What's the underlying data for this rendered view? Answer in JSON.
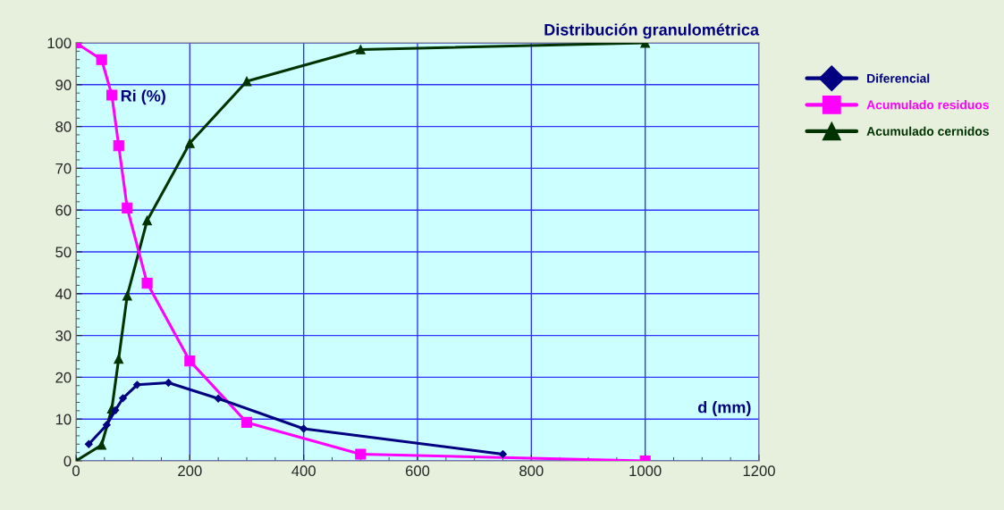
{
  "chart_data": {
    "type": "line",
    "title": "Distribución granulométrica",
    "annotations": [
      "Ri (%)",
      "d (mm)"
    ],
    "series": [
      {
        "name": "Diferencial",
        "color": "#000080",
        "marker": "diamond",
        "x": [
          22.5,
          54,
          69,
          82.5,
          107.5,
          162.5,
          250,
          400,
          750
        ],
        "values": [
          4,
          8.6,
          12.1,
          15,
          18.2,
          18.7,
          14.9,
          7.7,
          1.6
        ]
      },
      {
        "name": "Acumulado residuos",
        "color": "#ff00ff",
        "marker": "square",
        "x": [
          0,
          45,
          63,
          75,
          90,
          125,
          200,
          300,
          500,
          1000
        ],
        "values": [
          100,
          96,
          87.5,
          75.4,
          60.5,
          42.5,
          23.9,
          9.2,
          1.6,
          0
        ]
      },
      {
        "name": "Acumulado cernidos",
        "color": "#003300",
        "marker": "triangle",
        "x": [
          0,
          45,
          63,
          75,
          90,
          125,
          200,
          300,
          500,
          1000
        ],
        "values": [
          0,
          3.8,
          12.5,
          24.4,
          39.5,
          57.5,
          76,
          90.8,
          98.4,
          100
        ]
      }
    ],
    "xlim": [
      0,
      1200
    ],
    "xticks": [
      0,
      200,
      400,
      600,
      800,
      1000,
      1200
    ],
    "ylim": [
      0,
      100
    ],
    "yticks": [
      0,
      10,
      20,
      30,
      40,
      50,
      60,
      70,
      80,
      90,
      100
    ],
    "grid": true,
    "legend": "right"
  }
}
